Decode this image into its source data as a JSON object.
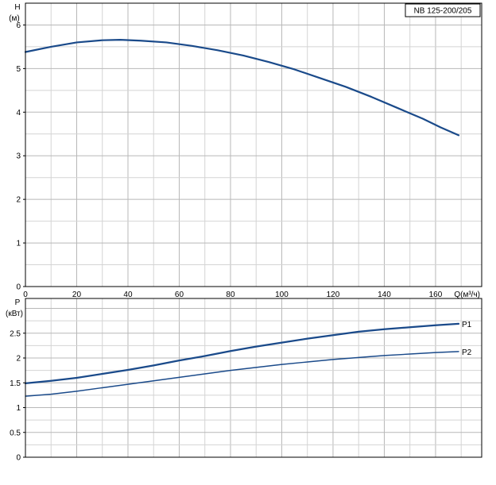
{
  "chart_data": [
    {
      "type": "line",
      "title": "NB 125-200/205",
      "xlabel": "Q(м³/ч)",
      "ylabel": "H",
      "yunit": "(м)",
      "xlim": [
        0,
        178
      ],
      "ylim": [
        0,
        6.5
      ],
      "xticks": [
        0,
        20,
        40,
        60,
        80,
        100,
        120,
        140,
        160
      ],
      "yticks": [
        0,
        1,
        2,
        3,
        4,
        5,
        6
      ],
      "grid": true,
      "series": [
        {
          "x": [
            0,
            10,
            20,
            30,
            37,
            45,
            55,
            65,
            75,
            85,
            95,
            105,
            115,
            125,
            135,
            145,
            155,
            162,
            169
          ],
          "values": [
            5.38,
            5.5,
            5.6,
            5.65,
            5.66,
            5.64,
            5.6,
            5.52,
            5.42,
            5.3,
            5.15,
            4.98,
            4.78,
            4.58,
            4.35,
            4.1,
            3.85,
            3.65,
            3.47
          ],
          "color": "#1a4a8a"
        }
      ]
    },
    {
      "type": "line",
      "xlabel": "",
      "ylabel": "P",
      "yunit": "(кВт)",
      "xlim": [
        0,
        178
      ],
      "ylim": [
        0,
        3.2
      ],
      "xticks": [
        0,
        20,
        40,
        60,
        80,
        100,
        120,
        140,
        160
      ],
      "yticks": [
        0,
        0.5,
        1,
        1.5,
        2,
        2.5
      ],
      "ytick_labels": [
        "0",
        "0.5",
        "1",
        "1.5",
        "2",
        "2.5"
      ],
      "grid": true,
      "series": [
        {
          "name": "P1",
          "x": [
            0,
            10,
            20,
            30,
            40,
            50,
            60,
            70,
            80,
            90,
            100,
            110,
            120,
            130,
            140,
            150,
            160,
            169
          ],
          "values": [
            1.49,
            1.54,
            1.6,
            1.68,
            1.76,
            1.85,
            1.95,
            2.04,
            2.14,
            2.23,
            2.31,
            2.39,
            2.46,
            2.53,
            2.58,
            2.62,
            2.66,
            2.69
          ],
          "color": "#1a4a8a"
        },
        {
          "name": "P2",
          "x": [
            0,
            10,
            20,
            30,
            40,
            50,
            60,
            70,
            80,
            90,
            100,
            110,
            120,
            130,
            140,
            150,
            160,
            169
          ],
          "values": [
            1.23,
            1.27,
            1.33,
            1.4,
            1.47,
            1.54,
            1.61,
            1.68,
            1.75,
            1.81,
            1.87,
            1.92,
            1.97,
            2.01,
            2.05,
            2.08,
            2.11,
            2.13
          ],
          "color": "#1a4a8a"
        }
      ]
    }
  ]
}
